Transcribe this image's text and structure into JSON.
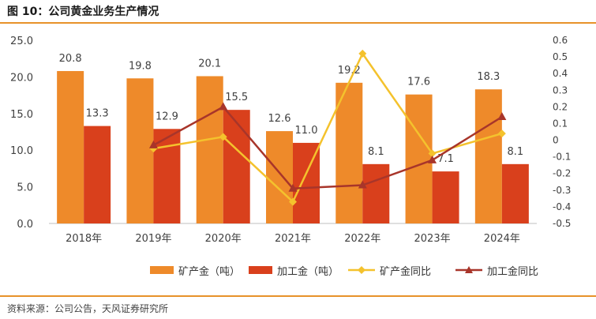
{
  "title": "图 10：公司黄金业务生产情况",
  "source": "资料来源：公司公告，天风证券研究所",
  "colors": {
    "mine_bar": "#ee8a2a",
    "process_bar": "#d9401c",
    "mine_line": "#f4c22d",
    "process_line": "#a8352a",
    "rule": "#e8922a"
  },
  "chart_data": {
    "type": "bar",
    "categories": [
      "2018年",
      "2019年",
      "2020年",
      "2021年",
      "2022年",
      "2023年",
      "2024年"
    ],
    "series": [
      {
        "name": "矿产金（吨）",
        "kind": "bar",
        "axis": "left",
        "values": [
          20.8,
          19.8,
          20.1,
          12.6,
          19.2,
          17.6,
          18.3
        ],
        "labels": [
          "20.8",
          "19.8",
          "20.1",
          "12.6",
          "19.2",
          "17.6",
          "18.3"
        ]
      },
      {
        "name": "加工金（吨）",
        "kind": "bar",
        "axis": "left",
        "values": [
          13.3,
          12.9,
          15.5,
          11.0,
          8.1,
          7.1,
          8.1
        ],
        "labels": [
          "13.3",
          "12.9",
          "15.5",
          "11.0",
          "8.1",
          "7.1",
          "8.1"
        ]
      },
      {
        "name": "矿产金同比",
        "kind": "line",
        "axis": "right",
        "marker": "diamond",
        "values": [
          null,
          -0.05,
          0.02,
          -0.37,
          0.52,
          -0.08,
          0.04
        ]
      },
      {
        "name": "加工金同比",
        "kind": "line",
        "axis": "right",
        "marker": "triangle",
        "values": [
          null,
          -0.03,
          0.2,
          -0.29,
          -0.27,
          -0.12,
          0.14
        ]
      }
    ],
    "y_left": {
      "ticks": [
        "0.0",
        "5.0",
        "10.0",
        "15.0",
        "20.0",
        "25.0"
      ],
      "range": [
        0,
        25
      ]
    },
    "y_right": {
      "ticks": [
        "-0.5",
        "-0.4",
        "-0.3",
        "-0.2",
        "-0.1",
        "0",
        "0.1",
        "0.2",
        "0.3",
        "0.4",
        "0.5",
        "0.6"
      ],
      "range": [
        -0.5,
        0.6
      ]
    },
    "grid": false,
    "legend_position": "bottom"
  }
}
